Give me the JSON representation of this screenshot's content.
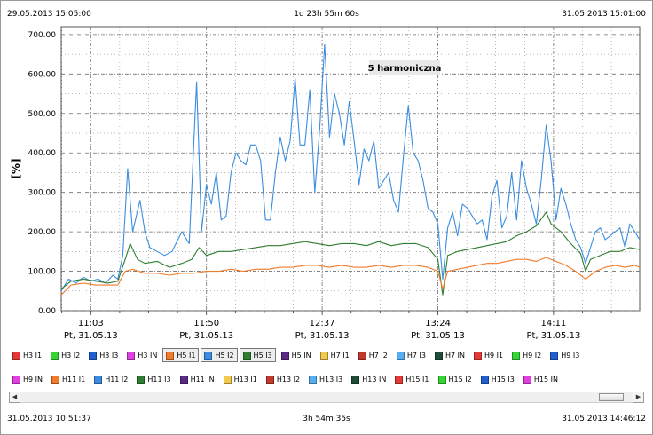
{
  "header": {
    "start_time": "29.05.2013 15:05:00",
    "span": "1d 23h 55m 60s",
    "end_time": "31.05.2013 15:01:00"
  },
  "footer": {
    "start_time": "31.05.2013 10:51:37",
    "span": "3h 54m 35s",
    "end_time": "31.05.2013 14:46:12"
  },
  "colors": {
    "grid": "#6e6e6e",
    "series_h5_i1": "#f07b2a",
    "series_h5_i2": "#3a8de0",
    "series_h5_i3": "#2e7d32"
  },
  "chart_data": {
    "type": "line",
    "title": "5 harmoniczna",
    "ylabel": "[%]",
    "ylim": [
      0,
      720
    ],
    "yticks": [
      0,
      100,
      200,
      300,
      400,
      500,
      600,
      700
    ],
    "ytick_labels": [
      "0.00",
      "100.00",
      "200.00",
      "300.00",
      "400.00",
      "500.00",
      "600.00",
      "700.00"
    ],
    "x_time_range": [
      "10:51",
      "14:46"
    ],
    "xticks": [
      {
        "time": "11:03",
        "date": "Pt, 31.05.13"
      },
      {
        "time": "11:50",
        "date": "Pt, 31.05.13"
      },
      {
        "time": "12:37",
        "date": "Pt, 31.05.13"
      },
      {
        "time": "13:24",
        "date": "Pt, 31.05.13"
      },
      {
        "time": "14:11",
        "date": "Pt, 31.05.13"
      }
    ],
    "grid": true,
    "series": [
      {
        "name": "H5 I2",
        "color": "#3a8de0",
        "points": [
          [
            "10:51",
            50
          ],
          [
            "10:54",
            80
          ],
          [
            "10:57",
            70
          ],
          [
            "11:00",
            85
          ],
          [
            "11:03",
            75
          ],
          [
            "11:06",
            80
          ],
          [
            "11:09",
            70
          ],
          [
            "11:12",
            90
          ],
          [
            "11:14",
            80
          ],
          [
            "11:16",
            140
          ],
          [
            "11:18",
            360
          ],
          [
            "11:20",
            200
          ],
          [
            "11:23",
            280
          ],
          [
            "11:25",
            200
          ],
          [
            "11:27",
            160
          ],
          [
            "11:30",
            150
          ],
          [
            "11:33",
            140
          ],
          [
            "11:36",
            150
          ],
          [
            "11:40",
            200
          ],
          [
            "11:43",
            170
          ],
          [
            "11:46",
            580
          ],
          [
            "11:48",
            200
          ],
          [
            "11:50",
            320
          ],
          [
            "11:52",
            270
          ],
          [
            "11:54",
            350
          ],
          [
            "11:56",
            230
          ],
          [
            "11:58",
            240
          ],
          [
            "12:00",
            350
          ],
          [
            "12:02",
            400
          ],
          [
            "12:04",
            380
          ],
          [
            "12:06",
            370
          ],
          [
            "12:08",
            420
          ],
          [
            "12:10",
            420
          ],
          [
            "12:12",
            380
          ],
          [
            "12:14",
            230
          ],
          [
            "12:16",
            230
          ],
          [
            "12:18",
            350
          ],
          [
            "12:20",
            440
          ],
          [
            "12:22",
            380
          ],
          [
            "12:24",
            430
          ],
          [
            "12:26",
            590
          ],
          [
            "12:28",
            420
          ],
          [
            "12:30",
            420
          ],
          [
            "12:32",
            560
          ],
          [
            "12:34",
            300
          ],
          [
            "12:36",
            460
          ],
          [
            "12:38",
            675
          ],
          [
            "12:40",
            440
          ],
          [
            "12:42",
            550
          ],
          [
            "12:44",
            500
          ],
          [
            "12:46",
            420
          ],
          [
            "12:48",
            530
          ],
          [
            "12:50",
            430
          ],
          [
            "12:52",
            320
          ],
          [
            "12:54",
            410
          ],
          [
            "12:56",
            380
          ],
          [
            "12:58",
            430
          ],
          [
            "13:00",
            310
          ],
          [
            "13:02",
            330
          ],
          [
            "13:04",
            350
          ],
          [
            "13:06",
            280
          ],
          [
            "13:08",
            250
          ],
          [
            "13:10",
            390
          ],
          [
            "13:12",
            520
          ],
          [
            "13:14",
            400
          ],
          [
            "13:16",
            380
          ],
          [
            "13:18",
            330
          ],
          [
            "13:20",
            260
          ],
          [
            "13:22",
            250
          ],
          [
            "13:24",
            220
          ],
          [
            "13:26",
            80
          ],
          [
            "13:28",
            210
          ],
          [
            "13:30",
            250
          ],
          [
            "13:32",
            190
          ],
          [
            "13:34",
            270
          ],
          [
            "13:36",
            260
          ],
          [
            "13:38",
            240
          ],
          [
            "13:40",
            220
          ],
          [
            "13:42",
            230
          ],
          [
            "13:44",
            180
          ],
          [
            "13:46",
            290
          ],
          [
            "13:48",
            330
          ],
          [
            "13:50",
            210
          ],
          [
            "13:52",
            240
          ],
          [
            "13:54",
            350
          ],
          [
            "13:56",
            230
          ],
          [
            "13:58",
            380
          ],
          [
            "14:00",
            310
          ],
          [
            "14:02",
            270
          ],
          [
            "14:04",
            220
          ],
          [
            "14:06",
            330
          ],
          [
            "14:08",
            470
          ],
          [
            "14:10",
            380
          ],
          [
            "14:12",
            230
          ],
          [
            "14:14",
            310
          ],
          [
            "14:16",
            270
          ],
          [
            "14:18",
            220
          ],
          [
            "14:20",
            180
          ],
          [
            "14:22",
            160
          ],
          [
            "14:24",
            120
          ],
          [
            "14:26",
            160
          ],
          [
            "14:28",
            200
          ],
          [
            "14:30",
            210
          ],
          [
            "14:32",
            180
          ],
          [
            "14:34",
            190
          ],
          [
            "14:36",
            200
          ],
          [
            "14:38",
            210
          ],
          [
            "14:40",
            160
          ],
          [
            "14:42",
            220
          ],
          [
            "14:44",
            200
          ],
          [
            "14:46",
            180
          ]
        ]
      },
      {
        "name": "H5 I3",
        "color": "#2e7d32",
        "points": [
          [
            "10:51",
            55
          ],
          [
            "10:55",
            75
          ],
          [
            "11:00",
            80
          ],
          [
            "11:05",
            75
          ],
          [
            "11:10",
            70
          ],
          [
            "11:14",
            75
          ],
          [
            "11:17",
            130
          ],
          [
            "11:19",
            170
          ],
          [
            "11:22",
            130
          ],
          [
            "11:25",
            120
          ],
          [
            "11:30",
            125
          ],
          [
            "11:35",
            110
          ],
          [
            "11:40",
            120
          ],
          [
            "11:44",
            130
          ],
          [
            "11:47",
            160
          ],
          [
            "11:50",
            140
          ],
          [
            "11:55",
            150
          ],
          [
            "12:00",
            150
          ],
          [
            "12:05",
            155
          ],
          [
            "12:10",
            160
          ],
          [
            "12:15",
            165
          ],
          [
            "12:20",
            165
          ],
          [
            "12:25",
            170
          ],
          [
            "12:30",
            175
          ],
          [
            "12:35",
            170
          ],
          [
            "12:40",
            165
          ],
          [
            "12:45",
            170
          ],
          [
            "12:50",
            170
          ],
          [
            "12:55",
            165
          ],
          [
            "13:00",
            175
          ],
          [
            "13:05",
            165
          ],
          [
            "13:10",
            170
          ],
          [
            "13:15",
            170
          ],
          [
            "13:20",
            160
          ],
          [
            "13:24",
            130
          ],
          [
            "13:26",
            40
          ],
          [
            "13:28",
            140
          ],
          [
            "13:32",
            150
          ],
          [
            "13:36",
            155
          ],
          [
            "13:40",
            160
          ],
          [
            "13:44",
            165
          ],
          [
            "13:48",
            170
          ],
          [
            "13:52",
            175
          ],
          [
            "13:56",
            190
          ],
          [
            "14:00",
            200
          ],
          [
            "14:04",
            215
          ],
          [
            "14:08",
            250
          ],
          [
            "14:10",
            220
          ],
          [
            "14:14",
            200
          ],
          [
            "14:18",
            170
          ],
          [
            "14:22",
            145
          ],
          [
            "14:24",
            100
          ],
          [
            "14:26",
            130
          ],
          [
            "14:30",
            140
          ],
          [
            "14:34",
            150
          ],
          [
            "14:38",
            150
          ],
          [
            "14:42",
            160
          ],
          [
            "14:46",
            155
          ]
        ]
      },
      {
        "name": "H5 I1",
        "color": "#f07b2a",
        "points": [
          [
            "10:51",
            40
          ],
          [
            "10:55",
            65
          ],
          [
            "11:00",
            70
          ],
          [
            "11:05",
            65
          ],
          [
            "11:10",
            65
          ],
          [
            "11:14",
            65
          ],
          [
            "11:17",
            100
          ],
          [
            "11:20",
            105
          ],
          [
            "11:25",
            95
          ],
          [
            "11:30",
            95
          ],
          [
            "11:35",
            90
          ],
          [
            "11:40",
            95
          ],
          [
            "11:45",
            95
          ],
          [
            "11:50",
            100
          ],
          [
            "11:55",
            100
          ],
          [
            "12:00",
            105
          ],
          [
            "12:05",
            100
          ],
          [
            "12:10",
            105
          ],
          [
            "12:15",
            105
          ],
          [
            "12:20",
            110
          ],
          [
            "12:25",
            110
          ],
          [
            "12:30",
            115
          ],
          [
            "12:35",
            115
          ],
          [
            "12:40",
            110
          ],
          [
            "12:45",
            115
          ],
          [
            "12:50",
            110
          ],
          [
            "12:55",
            110
          ],
          [
            "13:00",
            115
          ],
          [
            "13:05",
            110
          ],
          [
            "13:10",
            115
          ],
          [
            "13:15",
            115
          ],
          [
            "13:20",
            110
          ],
          [
            "13:24",
            100
          ],
          [
            "13:26",
            55
          ],
          [
            "13:28",
            100
          ],
          [
            "13:32",
            105
          ],
          [
            "13:36",
            110
          ],
          [
            "13:40",
            115
          ],
          [
            "13:44",
            120
          ],
          [
            "13:48",
            120
          ],
          [
            "13:52",
            125
          ],
          [
            "13:56",
            130
          ],
          [
            "14:00",
            130
          ],
          [
            "14:04",
            125
          ],
          [
            "14:08",
            135
          ],
          [
            "14:12",
            125
          ],
          [
            "14:16",
            115
          ],
          [
            "14:20",
            100
          ],
          [
            "14:24",
            80
          ],
          [
            "14:28",
            100
          ],
          [
            "14:32",
            110
          ],
          [
            "14:36",
            115
          ],
          [
            "14:40",
            110
          ],
          [
            "14:44",
            115
          ],
          [
            "14:46",
            110
          ]
        ]
      }
    ]
  },
  "legend": {
    "row1": [
      {
        "label": "H3 I1",
        "color": "#e53935",
        "selected": false
      },
      {
        "label": "H3 I2",
        "color": "#37d437",
        "selected": false
      },
      {
        "label": "H3 I3",
        "color": "#1f5fd0",
        "selected": false
      },
      {
        "label": "H3 IN",
        "color": "#e040e0",
        "selected": false
      },
      {
        "label": "H5 I1",
        "color": "#f07b2a",
        "selected": true
      },
      {
        "label": "H5 I2",
        "color": "#3a8de0",
        "selected": true
      },
      {
        "label": "H5 I3",
        "color": "#2e7d32",
        "selected": true
      },
      {
        "label": "H5 IN",
        "color": "#5b2a86",
        "selected": false
      },
      {
        "label": "H7 I1",
        "color": "#f2c94c",
        "selected": false
      },
      {
        "label": "H7 I2",
        "color": "#c0392b",
        "selected": false
      },
      {
        "label": "H7 I3",
        "color": "#56aef0",
        "selected": false
      },
      {
        "label": "H7 IN",
        "color": "#1e4d3a",
        "selected": false
      },
      {
        "label": "H9 I1",
        "color": "#e53935",
        "selected": false
      },
      {
        "label": "H9 I2",
        "color": "#37d437",
        "selected": false
      },
      {
        "label": "H9 I3",
        "color": "#1f5fd0",
        "selected": false
      }
    ],
    "row2": [
      {
        "label": "H9 IN",
        "color": "#e040e0",
        "selected": false
      },
      {
        "label": "H11 I1",
        "color": "#f07b2a",
        "selected": false
      },
      {
        "label": "H11 I2",
        "color": "#3a8de0",
        "selected": false
      },
      {
        "label": "H11 I3",
        "color": "#2e7d32",
        "selected": false
      },
      {
        "label": "H11 IN",
        "color": "#5b2a86",
        "selected": false
      },
      {
        "label": "H13 I1",
        "color": "#f2c94c",
        "selected": false
      },
      {
        "label": "H13 I2",
        "color": "#c0392b",
        "selected": false
      },
      {
        "label": "H13 I3",
        "color": "#56aef0",
        "selected": false
      },
      {
        "label": "H13 IN",
        "color": "#1e4d3a",
        "selected": false
      },
      {
        "label": "H15 I1",
        "color": "#e53935",
        "selected": false
      },
      {
        "label": "H15 I2",
        "color": "#37d437",
        "selected": false
      },
      {
        "label": "H15 I3",
        "color": "#1f5fd0",
        "selected": false
      },
      {
        "label": "H15 IN",
        "color": "#e040e0",
        "selected": false
      }
    ]
  },
  "scrollbar": {
    "left_icon": "arrow-left-icon",
    "right_icon": "arrow-right-icon",
    "left_glyph": "◀",
    "right_glyph": "▶"
  }
}
